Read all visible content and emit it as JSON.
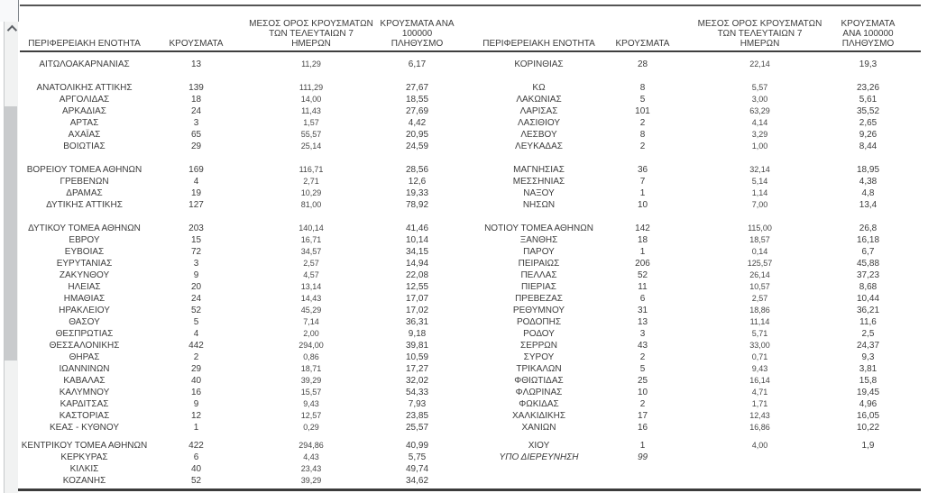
{
  "table": {
    "headers": {
      "region": "ΠΕΡΙΦΕΡΕΙΑΚΗ ΕΝΟΤΗΤΑ",
      "cases": "ΚΡΟΥΣΜΑΤΑ",
      "avg7": "ΜΕΣΟΣ ΟΡΟΣ ΚΡΟΥΣΜΑΤΩΝ\nΤΩΝ ΤΕΛΕΥΤΑΙΩΝ 7\nΗΜΕΡΩΝ",
      "per100k": "ΚΡΟΥΣΜΑΤΑ ΑΝΑ 100000\nΠΛΗΘΥΣΜΟ"
    },
    "rows": [
      {
        "l": [
          "ΑΙΤΩΛΟΑΚΑΡΝΑΝΙΑΣ",
          "13",
          "11,29",
          "6,17"
        ],
        "r": [
          "ΚΟΡΙΝΘΙΑΣ",
          "28",
          "22,14",
          "19,3"
        ]
      },
      {
        "s": 13
      },
      {
        "l": [
          "ΑΝΑΤΟΛΙΚΗΣ ΑΤΤΙΚΗΣ",
          "139",
          "111,29",
          "27,67"
        ],
        "r": [
          "ΚΩ",
          "8",
          "5,57",
          "23,26"
        ]
      },
      {
        "l": [
          "ΑΡΓΟΛΙΔΑΣ",
          "18",
          "14,00",
          "18,55"
        ],
        "r": [
          "ΛΑΚΩΝΙΑΣ",
          "5",
          "3,00",
          "5,61"
        ]
      },
      {
        "l": [
          "ΑΡΚΑΔΙΑΣ",
          "24",
          "11,43",
          "27,69"
        ],
        "r": [
          "ΛΑΡΙΣΑΣ",
          "101",
          "63,29",
          "35,52"
        ]
      },
      {
        "l": [
          "ΑΡΤΑΣ",
          "3",
          "1,57",
          "4,42"
        ],
        "r": [
          "ΛΑΣΙΘΙΟΥ",
          "2",
          "4,14",
          "2,65"
        ]
      },
      {
        "l": [
          "ΑΧΑΪΑΣ",
          "65",
          "55,57",
          "20,95"
        ],
        "r": [
          "ΛΕΣΒΟΥ",
          "8",
          "3,29",
          "9,26"
        ]
      },
      {
        "l": [
          "ΒΟΙΩΤΙΑΣ",
          "29",
          "25,14",
          "24,59"
        ],
        "r": [
          "ΛΕΥΚΑΔΑΣ",
          "2",
          "1,00",
          "8,44"
        ]
      },
      {
        "s": 13
      },
      {
        "l": [
          "ΒΟΡΕΙΟΥ ΤΟΜΕΑ ΑΘΗΝΩΝ",
          "169",
          "116,71",
          "28,56"
        ],
        "r": [
          "ΜΑΓΝΗΣΙΑΣ",
          "36",
          "32,14",
          "18,95"
        ]
      },
      {
        "l": [
          "ΓΡΕΒΕΝΩΝ",
          "4",
          "2,71",
          "12,6"
        ],
        "r": [
          "ΜΕΣΣΗΝΙΑΣ",
          "7",
          "5,14",
          "4,38"
        ]
      },
      {
        "l": [
          "ΔΡΑΜΑΣ",
          "19",
          "10,29",
          "19,33"
        ],
        "r": [
          "ΝΑΞΟΥ",
          "1",
          "1,14",
          "4,8"
        ]
      },
      {
        "l": [
          "ΔΥΤΙΚΗΣ ΑΤΤΙΚΗΣ",
          "127",
          "81,00",
          "78,92"
        ],
        "r": [
          "ΝΗΣΩΝ",
          "10",
          "7,00",
          "13,4"
        ]
      },
      {
        "s": 13
      },
      {
        "l": [
          "ΔΥΤΙΚΟΥ ΤΟΜΕΑ ΑΘΗΝΩΝ",
          "203",
          "140,14",
          "41,46"
        ],
        "r": [
          "ΝΟΤΙΟΥ ΤΟΜΕΑ ΑΘΗΝΩΝ",
          "142",
          "115,00",
          "26,8"
        ]
      },
      {
        "l": [
          "ΕΒΡΟΥ",
          "15",
          "16,71",
          "10,14"
        ],
        "r": [
          "ΞΑΝΘΗΣ",
          "18",
          "18,57",
          "16,18"
        ]
      },
      {
        "l": [
          "ΕΥΒΟΙΑΣ",
          "72",
          "34,57",
          "34,15"
        ],
        "r": [
          "ΠΑΡΟΥ",
          "1",
          "0,14",
          "6,7"
        ]
      },
      {
        "l": [
          "ΕΥΡΥΤΑΝΙΑΣ",
          "3",
          "2,57",
          "14,94"
        ],
        "r": [
          "ΠΕΙΡΑΙΩΣ",
          "206",
          "125,57",
          "45,88"
        ]
      },
      {
        "l": [
          "ΖΑΚΥΝΘΟΥ",
          "9",
          "4,57",
          "22,08"
        ],
        "r": [
          "ΠΕΛΛΑΣ",
          "52",
          "26,14",
          "37,23"
        ]
      },
      {
        "l": [
          "ΗΛΕΙΑΣ",
          "20",
          "13,14",
          "12,55"
        ],
        "r": [
          "ΠΙΕΡΙΑΣ",
          "11",
          "10,57",
          "8,68"
        ]
      },
      {
        "l": [
          "ΗΜΑΘΙΑΣ",
          "24",
          "14,43",
          "17,07"
        ],
        "r": [
          "ΠΡΕΒΕΖΑΣ",
          "6",
          "2,57",
          "10,44"
        ]
      },
      {
        "l": [
          "ΗΡΑΚΛΕΙΟΥ",
          "52",
          "45,29",
          "17,02"
        ],
        "r": [
          "ΡΕΘΥΜΝΟΥ",
          "31",
          "18,86",
          "36,21"
        ]
      },
      {
        "l": [
          "ΘΑΣΟΥ",
          "5",
          "7,14",
          "36,31"
        ],
        "r": [
          "ΡΟΔΟΠΗΣ",
          "13",
          "11,14",
          "11,6"
        ]
      },
      {
        "l": [
          "ΘΕΣΠΡΩΤΙΑΣ",
          "4",
          "2,00",
          "9,18"
        ],
        "r": [
          "ΡΟΔΟΥ",
          "3",
          "5,71",
          "2,5"
        ]
      },
      {
        "l": [
          "ΘΕΣΣΑΛΟΝΙΚΗΣ",
          "442",
          "294,00",
          "39,81"
        ],
        "r": [
          "ΣΕΡΡΩΝ",
          "43",
          "33,00",
          "24,37"
        ]
      },
      {
        "l": [
          "ΘΗΡΑΣ",
          "2",
          "0,86",
          "10,59"
        ],
        "r": [
          "ΣΥΡΟΥ",
          "2",
          "0,71",
          "9,3"
        ]
      },
      {
        "l": [
          "ΙΩΑΝΝΙΝΩΝ",
          "29",
          "18,71",
          "17,27"
        ],
        "r": [
          "ΤΡΙΚΑΛΩΝ",
          "5",
          "9,43",
          "3,81"
        ]
      },
      {
        "l": [
          "ΚΑΒΑΛΑΣ",
          "40",
          "39,29",
          "32,02"
        ],
        "r": [
          "ΦΘΙΩΤΙΔΑΣ",
          "25",
          "16,14",
          "15,8"
        ]
      },
      {
        "l": [
          "ΚΑΛΥΜΝΟΥ",
          "16",
          "15,57",
          "54,33"
        ],
        "r": [
          "ΦΛΩΡΙΝΑΣ",
          "10",
          "4,71",
          "19,45"
        ]
      },
      {
        "l": [
          "ΚΑΡΔΙΤΣΑΣ",
          "9",
          "9,43",
          "7,93"
        ],
        "r": [
          "ΦΩΚΙΔΑΣ",
          "2",
          "1,71",
          "4,96"
        ]
      },
      {
        "l": [
          "ΚΑΣΤΟΡΙΑΣ",
          "12",
          "12,57",
          "23,85"
        ],
        "r": [
          "ΧΑΛΚΙΔΙΚΗΣ",
          "17",
          "12,43",
          "16,05"
        ]
      },
      {
        "l": [
          "ΚΕΑΣ - ΚΥΘΝΟΥ",
          "1",
          "0,29",
          "25,57"
        ],
        "r": [
          "ΧΑΝΙΩΝ",
          "16",
          "16,86",
          "10,22"
        ]
      },
      {
        "s": 7
      },
      {
        "l": [
          "ΚΕΝΤΡΙΚΟΥ ΤΟΜΕΑ ΑΘΗΝΩΝ",
          "422",
          "294,86",
          "40,99"
        ],
        "r": [
          "ΧΙΟΥ",
          "1",
          "4,00",
          "1,9"
        ]
      },
      {
        "l": [
          "ΚΕΡΚΥΡΑΣ",
          "6",
          "4,43",
          "5,75"
        ],
        "r": [
          "ΥΠΟ ΔΙΕΡΕΥΝΗΣΗ",
          "99",
          "",
          ""
        ],
        "ri": true
      },
      {
        "l": [
          "ΚΙΛΚΙΣ",
          "40",
          "23,43",
          "49,74"
        ],
        "r": [
          "",
          "",
          "",
          ""
        ]
      },
      {
        "l": [
          "ΚΟΖΑΝΗΣ",
          "52",
          "39,29",
          "34,62"
        ],
        "r": [
          "",
          "",
          "",
          ""
        ]
      }
    ]
  },
  "colors": {
    "text": "#3c3c3c",
    "border_top": "#555555",
    "border_header": "#3f3f3f",
    "border_bottom": "#3b3b3b",
    "scrollbar_track": "#f1f2f2",
    "scrollbar_thumb": "#c9cbcd"
  },
  "scrollbar": {
    "up_arrow": "chevron-up"
  }
}
